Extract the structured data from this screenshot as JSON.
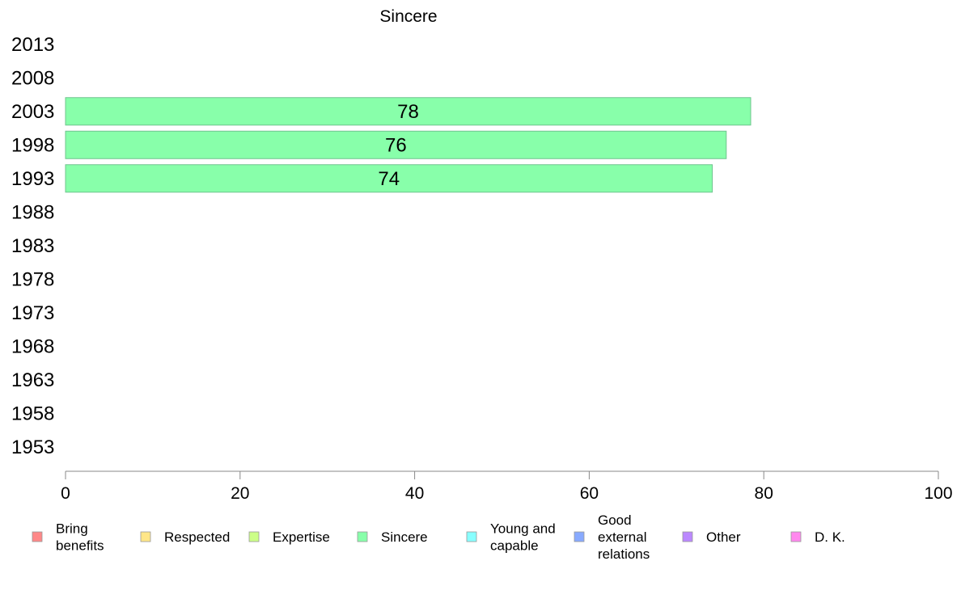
{
  "chart_data": {
    "type": "bar",
    "orientation": "horizontal",
    "title": "Sincere",
    "categories": [
      "2013",
      "2008",
      "2003",
      "1998",
      "1993",
      "1988",
      "1983",
      "1978",
      "1973",
      "1968",
      "1963",
      "1958",
      "1953"
    ],
    "series": [
      {
        "name": "Sincere",
        "color": "#88ffaa",
        "values": [
          null,
          null,
          78.5,
          75.7,
          74.1,
          null,
          null,
          null,
          null,
          null,
          null,
          null,
          null
        ],
        "labels": [
          "",
          "",
          "78",
          "76",
          "74",
          "",
          "",
          "",
          "",
          "",
          "",
          "",
          ""
        ]
      }
    ],
    "xlim": [
      0,
      100
    ],
    "xticks": [
      "0",
      "20",
      "40",
      "60",
      "80",
      "100"
    ],
    "grid": false,
    "legend_position": "bottom"
  },
  "legend": [
    {
      "label": "Bring\nbenefits",
      "color": "#ff8888"
    },
    {
      "label": "Respected",
      "color": "#ffe688"
    },
    {
      "label": "Expertise",
      "color": "#ccff88"
    },
    {
      "label": "Sincere",
      "color": "#88ffaa"
    },
    {
      "label": "Young and\ncapable",
      "color": "#88ffff"
    },
    {
      "label": "Good\nexternal\nrelations",
      "color": "#88aaff"
    },
    {
      "label": "Other",
      "color": "#bb88ff"
    },
    {
      "label": "D. K.",
      "color": "#ff88ee"
    }
  ]
}
